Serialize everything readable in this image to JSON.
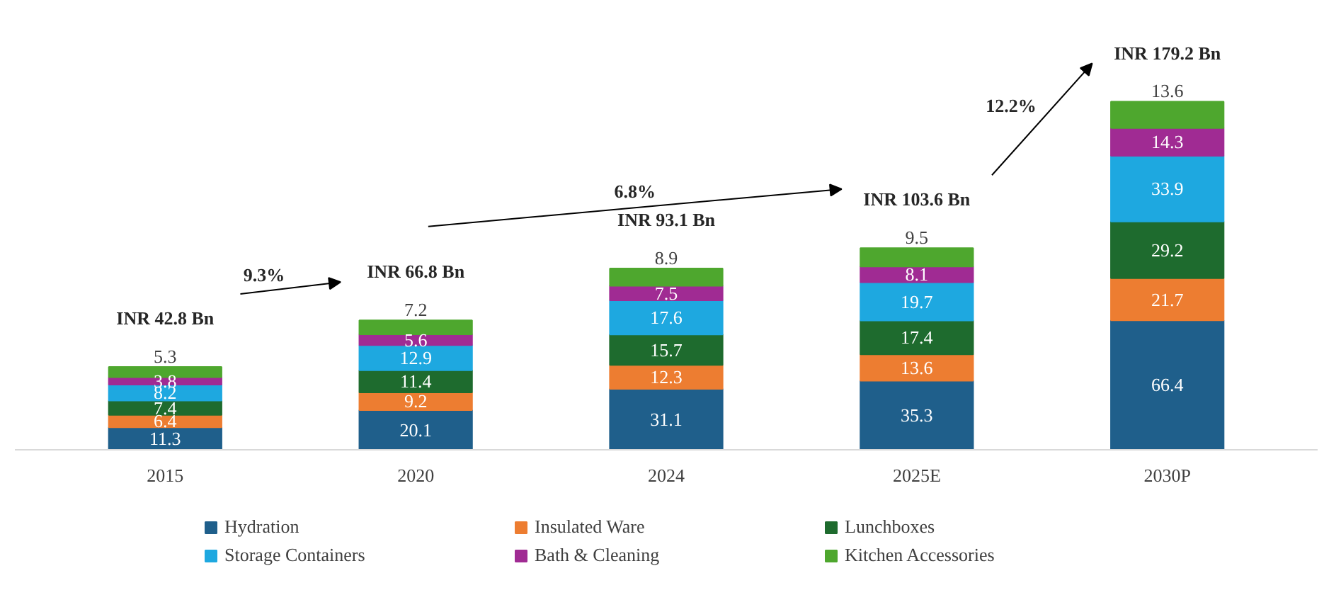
{
  "chart_data": {
    "type": "bar",
    "stacked": true,
    "categories": [
      "2015",
      "2020",
      "2024",
      "2025E",
      "2030P"
    ],
    "series": [
      {
        "name": "Hydration",
        "color": "#1f5f8b",
        "values": [
          11.3,
          20.1,
          31.1,
          35.3,
          66.4
        ]
      },
      {
        "name": "Insulated Ware",
        "color": "#ed7d31",
        "values": [
          6.4,
          9.2,
          12.3,
          13.6,
          21.7
        ]
      },
      {
        "name": "Lunchboxes",
        "color": "#1e6b2e",
        "values": [
          7.4,
          11.4,
          15.7,
          17.4,
          29.2
        ]
      },
      {
        "name": "Storage Containers",
        "color": "#1ea8e0",
        "values": [
          8.2,
          12.9,
          17.6,
          19.7,
          33.9
        ]
      },
      {
        "name": "Bath & Cleaning",
        "color": "#a02b93",
        "values": [
          3.8,
          5.6,
          7.5,
          8.1,
          14.3
        ]
      },
      {
        "name": "Kitchen Accessories",
        "color": "#4ea72e",
        "values": [
          5.3,
          7.2,
          8.9,
          9.5,
          13.6
        ]
      }
    ],
    "totals": [
      "INR 42.8 Bn",
      "INR 66.8 Bn",
      "INR 93.1 Bn",
      "INR 103.6 Bn",
      "INR 179.2 Bn"
    ],
    "annotations": [
      "9.3%",
      "6.8%",
      "12.2%"
    ],
    "data_labels": true,
    "tick_labels": "x",
    "legend": "bottom"
  }
}
